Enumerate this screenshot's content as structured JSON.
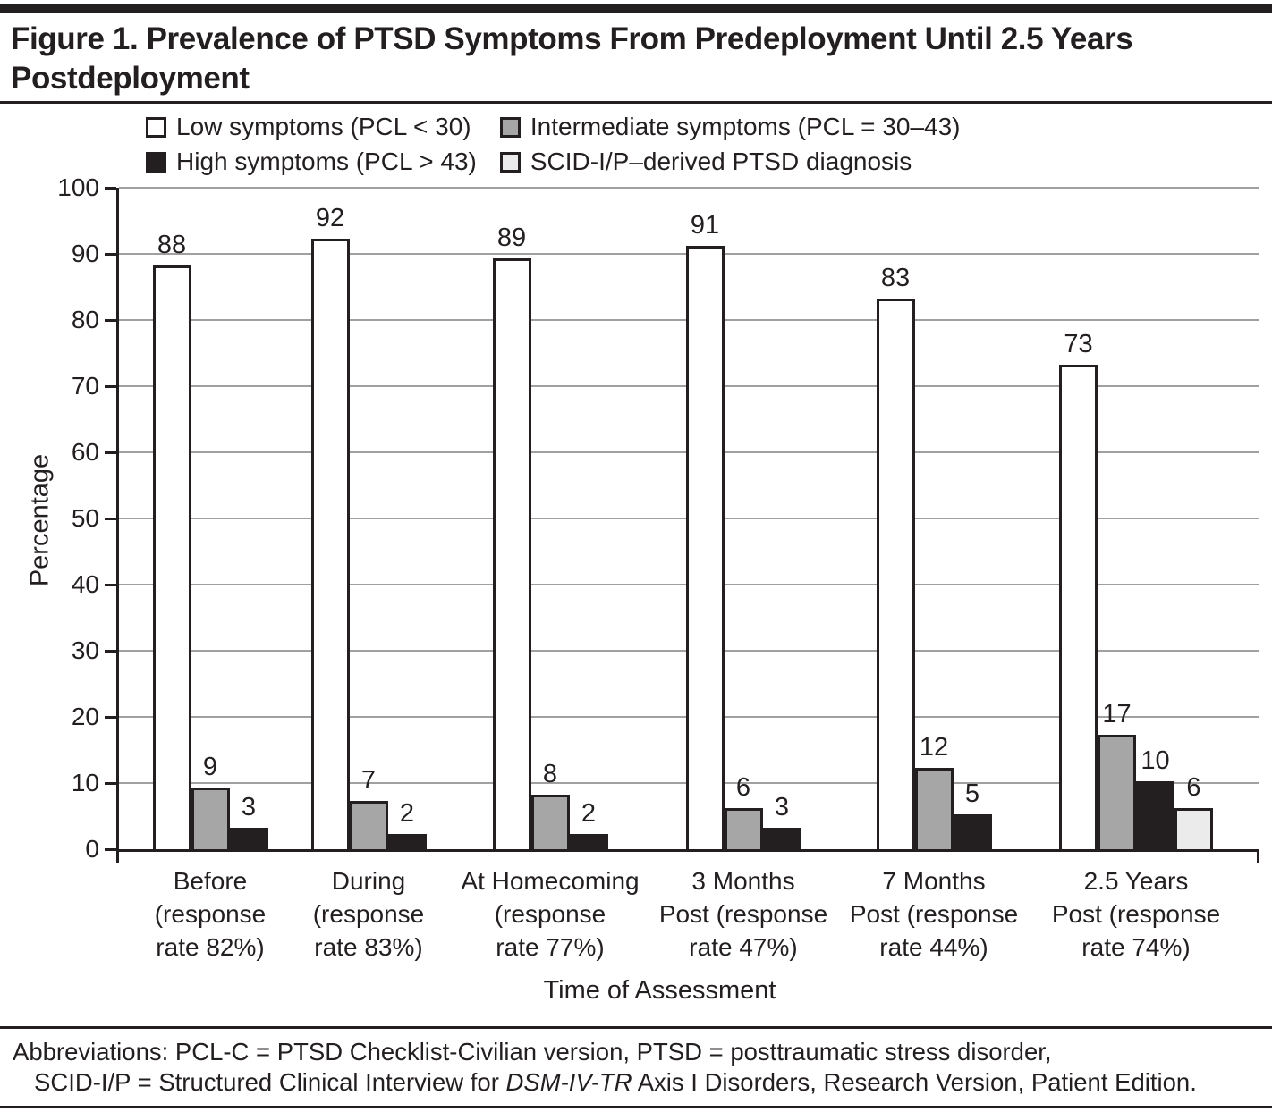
{
  "figure": {
    "title": "Figure 1. Prevalence of PTSD Symptoms From Predeployment Until 2.5 Years Postdeployment"
  },
  "legend": {
    "items": [
      {
        "name": "low-symptoms",
        "label": "Low symptoms (PCL < 30)",
        "color": "#ffffff"
      },
      {
        "name": "intermediate-symptoms",
        "label": "Intermediate symptoms (PCL = 30–43)",
        "color": "#a6a6a6"
      },
      {
        "name": "high-symptoms",
        "label": "High symptoms (PCL > 43)",
        "color": "#231f20"
      },
      {
        "name": "scid-diagnosis",
        "label": "SCID-I/P–derived PTSD diagnosis",
        "color": "#ebebeb"
      }
    ]
  },
  "chart_data": {
    "type": "bar",
    "title": "",
    "xlabel": "Time of Assessment",
    "ylabel": "Percentage",
    "ylim": [
      0,
      100
    ],
    "ytick_interval": 10,
    "grid": true,
    "legend_position": "top",
    "categories": [
      {
        "lines": [
          "Before",
          "(response",
          "rate 82%)"
        ]
      },
      {
        "lines": [
          "During",
          "(response",
          "rate 83%)"
        ]
      },
      {
        "lines": [
          "At Homecoming",
          "(response",
          "rate 77%)"
        ]
      },
      {
        "lines": [
          "3 Months",
          "Post (response",
          "rate 47%)"
        ]
      },
      {
        "lines": [
          "7 Months",
          "Post (response",
          "rate 44%)"
        ]
      },
      {
        "lines": [
          "2.5 Years",
          "Post (response",
          "rate 74%)"
        ]
      }
    ],
    "series": [
      {
        "name": "Low symptoms (PCL < 30)",
        "color": "#ffffff",
        "values": [
          88,
          92,
          89,
          91,
          83,
          73
        ]
      },
      {
        "name": "Intermediate symptoms (PCL = 30–43)",
        "color": "#a6a6a6",
        "values": [
          9,
          7,
          8,
          6,
          12,
          17
        ]
      },
      {
        "name": "High symptoms (PCL > 43)",
        "color": "#231f20",
        "values": [
          3,
          2,
          2,
          3,
          5,
          10
        ]
      },
      {
        "name": "SCID-I/P–derived PTSD diagnosis",
        "color": "#ebebeb",
        "values": [
          null,
          null,
          null,
          null,
          null,
          6
        ]
      }
    ]
  },
  "footer": {
    "line1": "Abbreviations: PCL-C = PTSD Checklist-Civilian version, PTSD = posttraumatic stress disorder,",
    "line2_prefix": "SCID-I/P = Structured Clinical Interview for ",
    "line2_italic": "DSM-IV-TR",
    "line2_suffix": " Axis I Disorders, Research Version, Patient Edition."
  },
  "colors": {
    "text": "#231f20",
    "gridline": "#a0a0a0",
    "bar_border": "#231f20"
  }
}
